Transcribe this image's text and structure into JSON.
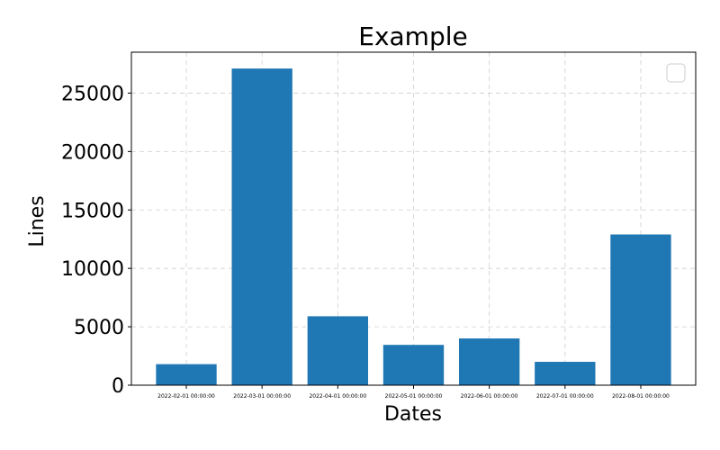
{
  "chart_data": {
    "type": "bar",
    "title": "Example",
    "xlabel": "Dates",
    "ylabel": "Lines",
    "categories": [
      "2022-02-01 00:00:00",
      "2022-03-01 00:00:00",
      "2022-04-01 00:00:00",
      "2022-05-01 00:00:00",
      "2022-06-01 00:00:00",
      "2022-07-01 00:00:00",
      "2022-08-01 00:00:00"
    ],
    "values": [
      1800,
      27100,
      5900,
      3450,
      4000,
      2000,
      12900
    ],
    "ylim": [
      0,
      28500
    ],
    "yticks": [
      0,
      5000,
      10000,
      15000,
      20000,
      25000
    ],
    "grid": true,
    "legend": "top-right, empty",
    "bar_color": "#1f77b4"
  }
}
